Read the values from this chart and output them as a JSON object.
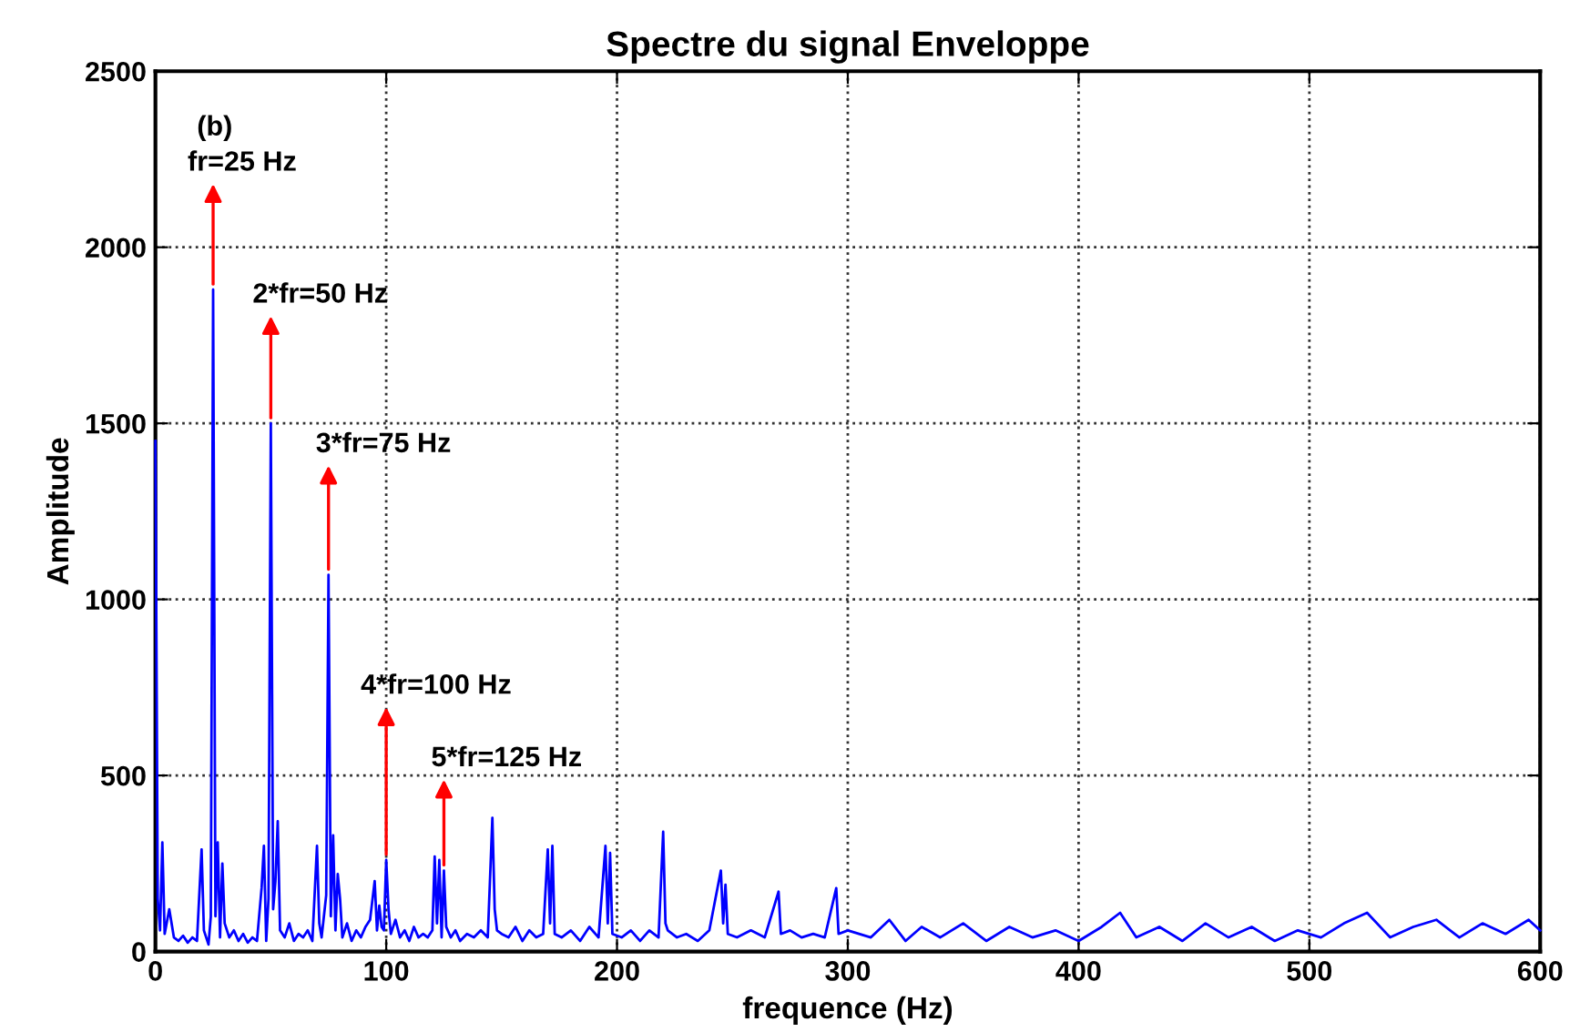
{
  "chart_data": {
    "type": "line",
    "title": "Spectre du signal Enveloppe",
    "xlabel": "frequence (Hz)",
    "ylabel": "Amplitude",
    "xlim": [
      0,
      600
    ],
    "xticks": [
      0,
      100,
      200,
      300,
      400,
      500,
      600
    ],
    "ylim": [
      0,
      2500
    ],
    "yticks": [
      0,
      500,
      1000,
      1500,
      2000,
      2500
    ],
    "grid": true,
    "marker": "none",
    "line_style": "solid",
    "annotations": [
      "(b)",
      {
        "text": "fr=25 Hz",
        "x": 25,
        "y": 1880
      },
      {
        "text": "2*fr=50 Hz",
        "x": 50,
        "y": 1500
      },
      {
        "text": "3*fr=75 Hz",
        "x": 75,
        "y": 1070
      },
      {
        "text": "4*fr=100 Hz",
        "x": 100,
        "y": 260
      },
      {
        "text": "5*fr=125 Hz",
        "x": 125,
        "y": 230
      }
    ],
    "series": [
      {
        "color": "#0000ff",
        "x": [
          0,
          1,
          2,
          3,
          4,
          6,
          8,
          10,
          12,
          14,
          16,
          18,
          20,
          21,
          22,
          23,
          24,
          25,
          26,
          27,
          28,
          29,
          30,
          32,
          34,
          36,
          38,
          40,
          42,
          44,
          46,
          47,
          48,
          49,
          50,
          51,
          52,
          53,
          54,
          56,
          58,
          60,
          62,
          64,
          66,
          68,
          70,
          71,
          72,
          74,
          75,
          76,
          77,
          78,
          79,
          80,
          81,
          83,
          85,
          87,
          89,
          91,
          93,
          95,
          96,
          97,
          98,
          99,
          100,
          101,
          102,
          104,
          106,
          108,
          110,
          112,
          114,
          116,
          118,
          120,
          121,
          122,
          123,
          124,
          125,
          126,
          128,
          130,
          132,
          135,
          138,
          141,
          144,
          146,
          147,
          148,
          150,
          153,
          156,
          159,
          162,
          165,
          168,
          170,
          171,
          172,
          173,
          176,
          180,
          184,
          188,
          192,
          195,
          196,
          197,
          198,
          202,
          206,
          210,
          214,
          218,
          220,
          221,
          222,
          226,
          230,
          235,
          240,
          245,
          246,
          247,
          248,
          252,
          258,
          264,
          270,
          271,
          275,
          280,
          285,
          290,
          295,
          296,
          300,
          310,
          318,
          325,
          332,
          340,
          350,
          360,
          370,
          380,
          390,
          400,
          410,
          418,
          425,
          435,
          445,
          455,
          465,
          475,
          485,
          495,
          505,
          515,
          525,
          535,
          545,
          555,
          565,
          575,
          585,
          595,
          600
        ],
        "values": [
          1450,
          150,
          60,
          310,
          50,
          120,
          40,
          30,
          45,
          25,
          40,
          30,
          290,
          60,
          40,
          20,
          100,
          1880,
          100,
          310,
          40,
          250,
          80,
          40,
          60,
          30,
          50,
          25,
          40,
          30,
          180,
          300,
          30,
          150,
          1500,
          120,
          200,
          370,
          60,
          40,
          80,
          30,
          50,
          40,
          60,
          30,
          300,
          80,
          40,
          160,
          1070,
          100,
          330,
          60,
          220,
          150,
          40,
          80,
          30,
          60,
          40,
          70,
          90,
          200,
          60,
          130,
          70,
          60,
          260,
          120,
          50,
          90,
          40,
          60,
          30,
          70,
          40,
          50,
          40,
          60,
          270,
          80,
          260,
          40,
          230,
          70,
          40,
          60,
          30,
          50,
          40,
          60,
          40,
          380,
          120,
          60,
          50,
          40,
          70,
          30,
          60,
          40,
          50,
          290,
          80,
          300,
          50,
          40,
          60,
          30,
          70,
          40,
          300,
          80,
          280,
          50,
          40,
          60,
          30,
          60,
          40,
          340,
          80,
          60,
          40,
          50,
          30,
          60,
          230,
          80,
          190,
          50,
          40,
          60,
          40,
          170,
          50,
          60,
          40,
          50,
          40,
          180,
          50,
          60,
          40,
          90,
          30,
          70,
          40,
          80,
          30,
          70,
          40,
          60,
          30,
          70,
          110,
          40,
          70,
          30,
          80,
          40,
          70,
          30,
          60,
          40,
          80,
          110,
          40,
          70,
          90,
          40,
          80,
          50,
          90,
          60
        ]
      }
    ]
  }
}
